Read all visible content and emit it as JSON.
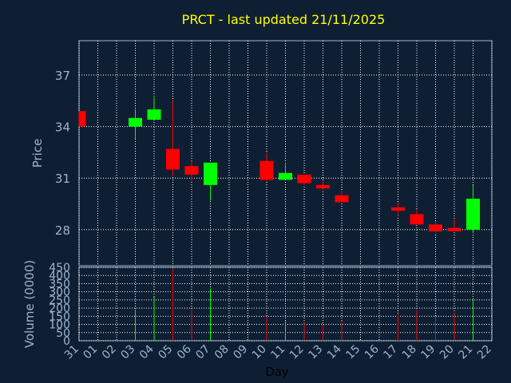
{
  "chart_data": {
    "type": "candlestick",
    "title": "PRCT - last updated 21/11/2025",
    "ylabel": "Price",
    "volume_label": "Volume (0000)",
    "xlabel": "Day",
    "price_ylim": [
      25.9,
      39
    ],
    "price_ticks": [
      28,
      31,
      34,
      37
    ],
    "volume_ylim": [
      0,
      450
    ],
    "volume_ticks": [
      0,
      50,
      100,
      150,
      200,
      250,
      300,
      350,
      400,
      450
    ],
    "x_ticks": [
      "31",
      "01",
      "02",
      "03",
      "04",
      "05",
      "06",
      "07",
      "08",
      "09",
      "10",
      "11",
      "12",
      "13",
      "14",
      "15",
      "16",
      "17",
      "18",
      "19",
      "20",
      "21",
      "22"
    ],
    "colors": {
      "up": "#00ff00",
      "down": "#ff0000",
      "background": "#0f1f33",
      "grid": "#ffffff",
      "axis": "#9bb4cf",
      "title": "#ffff00"
    },
    "candles": [
      {
        "day": "31",
        "open": 34.9,
        "high": 34.9,
        "low": 34.0,
        "close": 34.0,
        "volume": 0
      },
      {
        "day": "03",
        "open": 34.0,
        "high": 35.0,
        "low": 33.3,
        "close": 34.5,
        "volume": 190
      },
      {
        "day": "04",
        "open": 34.4,
        "high": 35.7,
        "low": 34.4,
        "close": 35.0,
        "volume": 270
      },
      {
        "day": "05",
        "open": 32.7,
        "high": 35.5,
        "low": 31.1,
        "close": 31.5,
        "volume": 440
      },
      {
        "day": "06",
        "open": 31.7,
        "high": 32.0,
        "low": 30.8,
        "close": 31.2,
        "volume": 190
      },
      {
        "day": "07",
        "open": 30.6,
        "high": 31.9,
        "low": 29.7,
        "close": 31.9,
        "volume": 320
      },
      {
        "day": "10",
        "open": 32.0,
        "high": 32.5,
        "low": 30.8,
        "close": 30.9,
        "volume": 150
      },
      {
        "day": "11",
        "open": 30.9,
        "high": 31.8,
        "low": 30.9,
        "close": 31.3,
        "volume": 120
      },
      {
        "day": "12",
        "open": 31.2,
        "high": 31.2,
        "low": 30.6,
        "close": 30.7,
        "volume": 110
      },
      {
        "day": "13",
        "open": 30.6,
        "high": 30.8,
        "low": 30.3,
        "close": 30.4,
        "volume": 100
      },
      {
        "day": "14",
        "open": 30.0,
        "high": 30.3,
        "low": 29.6,
        "close": 29.6,
        "volume": 120
      },
      {
        "day": "17",
        "open": 29.3,
        "high": 29.6,
        "low": 28.8,
        "close": 29.1,
        "volume": 160
      },
      {
        "day": "18",
        "open": 28.9,
        "high": 29.2,
        "low": 28.3,
        "close": 28.3,
        "volume": 190
      },
      {
        "day": "19",
        "open": 28.3,
        "high": 28.5,
        "low": 27.8,
        "close": 27.9,
        "volume": 150
      },
      {
        "day": "20",
        "open": 28.1,
        "high": 28.6,
        "low": 27.9,
        "close": 27.9,
        "volume": 170
      },
      {
        "day": "21",
        "open": 28.0,
        "high": 30.6,
        "low": 27.8,
        "close": 29.8,
        "volume": 250
      }
    ]
  }
}
